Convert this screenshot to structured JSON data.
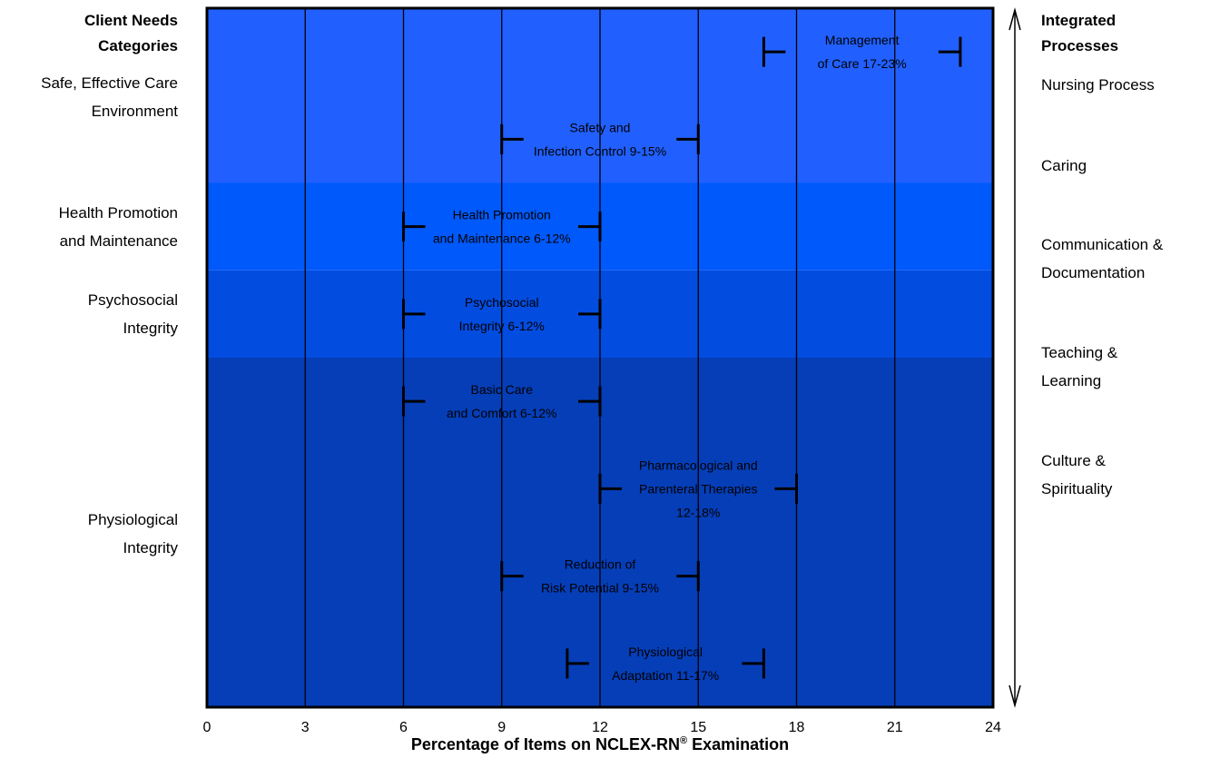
{
  "left_heading": [
    "Client Needs",
    "Categories"
  ],
  "right_heading": [
    "Integrated",
    "Processes"
  ],
  "left_categories": [
    {
      "lines": [
        "Safe, Effective Care",
        "Environment"
      ]
    },
    {
      "lines": [
        "Health Promotion",
        "and Maintenance"
      ]
    },
    {
      "lines": [
        "Psychosocial",
        "Integrity"
      ]
    },
    {
      "lines": [
        "Physiological",
        "Integrity"
      ]
    }
  ],
  "right_processes": [
    {
      "lines": [
        "Nursing Process"
      ]
    },
    {
      "lines": [
        "Caring"
      ]
    },
    {
      "lines": [
        "Communication &",
        "Documentation"
      ]
    },
    {
      "lines": [
        "Teaching &",
        "Learning"
      ]
    },
    {
      "lines": [
        "Culture &",
        "Spirituality"
      ]
    }
  ],
  "xlabel": {
    "text": "Percentage of Items on NCLEX-RN",
    "sup": "®",
    "suffix": " Examination"
  },
  "colors": {
    "band_safe": "#2160ff",
    "band_health": "#0059fa",
    "band_psycho": "#034ce0",
    "band_physio": "#063eb8",
    "lines": "#000000"
  },
  "chart_data": {
    "type": "range-bar",
    "xlim": [
      0,
      24
    ],
    "xticks": [
      0,
      3,
      6,
      9,
      12,
      15,
      18,
      21,
      24
    ],
    "xlabel": "Percentage of Items on NCLEX-RN® Examination",
    "grid": true,
    "bands": [
      {
        "category": "Safe, Effective Care Environment",
        "rows": 2
      },
      {
        "category": "Health Promotion and Maintenance",
        "rows": 1
      },
      {
        "category": "Psychosocial Integrity",
        "rows": 1
      },
      {
        "category": "Physiological Integrity",
        "rows": 4
      }
    ],
    "ranges": [
      {
        "label_lines": [
          "Management",
          "of Care 17-23%"
        ],
        "min": 17,
        "max": 23,
        "category": "Safe, Effective Care Environment"
      },
      {
        "label_lines": [
          "Safety and",
          "Infection Control 9-15%"
        ],
        "min": 9,
        "max": 15,
        "category": "Safe, Effective Care Environment"
      },
      {
        "label_lines": [
          "Health Promotion",
          "and Maintenance 6-12%"
        ],
        "min": 6,
        "max": 12,
        "category": "Health Promotion and Maintenance"
      },
      {
        "label_lines": [
          "Psychosocial",
          "Integrity 6-12%"
        ],
        "min": 6,
        "max": 12,
        "category": "Psychosocial Integrity"
      },
      {
        "label_lines": [
          "Basic Care",
          "and Comfort 6-12%"
        ],
        "min": 6,
        "max": 12,
        "category": "Physiological Integrity"
      },
      {
        "label_lines": [
          "Pharmacological and",
          "Parenteral Therapies",
          "12-18%"
        ],
        "min": 12,
        "max": 18,
        "category": "Physiological Integrity"
      },
      {
        "label_lines": [
          "Reduction of",
          "Risk Potential 9-15%"
        ],
        "min": 9,
        "max": 15,
        "category": "Physiological Integrity"
      },
      {
        "label_lines": [
          "Physiological",
          "Adaptation 11-17%"
        ],
        "min": 11,
        "max": 17,
        "category": "Physiological Integrity"
      }
    ]
  }
}
